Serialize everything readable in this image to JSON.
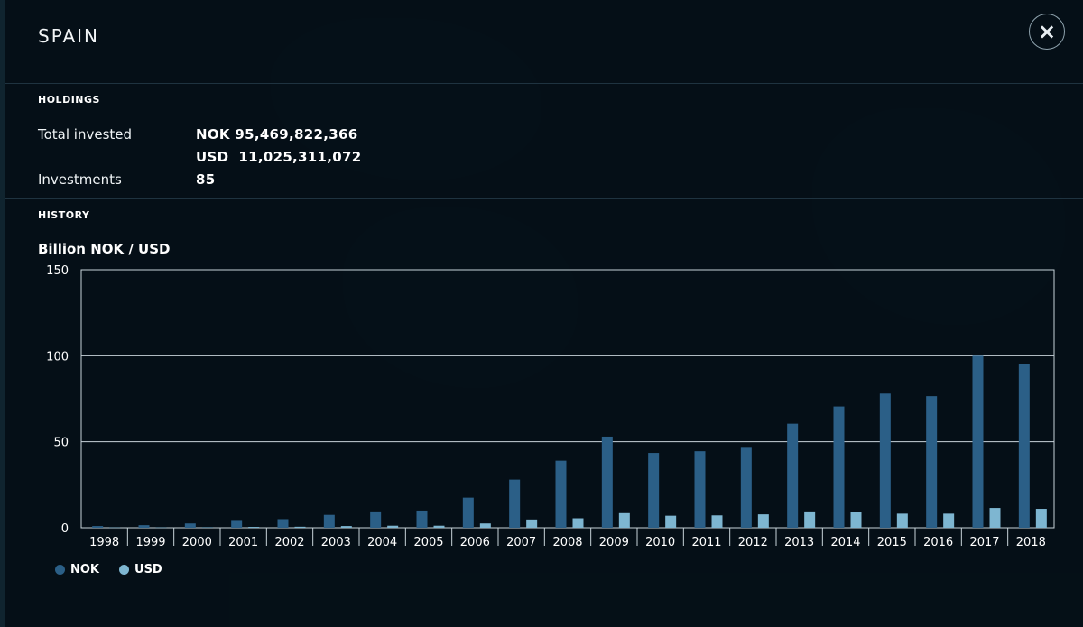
{
  "modal": {
    "title": "SPAIN",
    "close_icon": "close-icon"
  },
  "holdings": {
    "section_label": "HOLDINGS",
    "total_invested_label": "Total invested",
    "total_nok": "NOK 95,469,822,366",
    "total_usd": "USD  11,025,311,072",
    "investments_label": "Investments",
    "investments_value": "85"
  },
  "history": {
    "section_label": "HISTORY",
    "unit_label": "Billion NOK / USD"
  },
  "colors": {
    "nok": "#2b5f87",
    "usd": "#7eb6d1",
    "gridline": "#c8d3da",
    "axis": "#c8d3da"
  },
  "chart_data": {
    "type": "bar",
    "categories": [
      "1998",
      "1999",
      "2000",
      "2001",
      "2002",
      "2003",
      "2004",
      "2005",
      "2006",
      "2007",
      "2008",
      "2009",
      "2010",
      "2011",
      "2012",
      "2013",
      "2014",
      "2015",
      "2016",
      "2017",
      "2018"
    ],
    "series": [
      {
        "name": "NOK",
        "values": [
          1,
          1.5,
          2.5,
          4.5,
          5,
          7.5,
          9.5,
          10,
          17.5,
          28,
          39,
          53,
          43.5,
          44.5,
          46.5,
          60.5,
          70.5,
          78,
          76.5,
          100,
          95
        ]
      },
      {
        "name": "USD",
        "values": [
          0.2,
          0.2,
          0.3,
          0.5,
          0.6,
          1,
          1.2,
          1.2,
          2.5,
          4.8,
          5.5,
          8.5,
          7,
          7.2,
          7.8,
          9.5,
          9.2,
          8.2,
          8.2,
          11.5,
          11
        ]
      }
    ],
    "ylim": [
      0,
      150
    ],
    "yticks": [
      0,
      50,
      100,
      150
    ],
    "legend": "bottom-left",
    "grid": true
  }
}
